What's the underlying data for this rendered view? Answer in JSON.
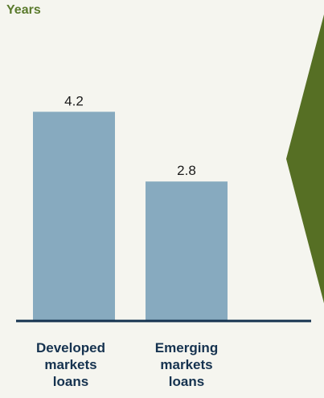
{
  "chart_data": {
    "type": "bar",
    "ylabel": "Years",
    "categories": [
      "Developed\nmarkets\nloans",
      "Emerging\nmarkets\nloans"
    ],
    "values": [
      4.2,
      2.8
    ],
    "data_labels": [
      "4.2",
      "2.8"
    ],
    "ylim": [
      0,
      5.8
    ],
    "bar_color": "#87aabf",
    "axis_color": "#15324f",
    "label_color": "#15324f",
    "title_color": "#5a7a2c",
    "arrow_color": "#566f24"
  }
}
